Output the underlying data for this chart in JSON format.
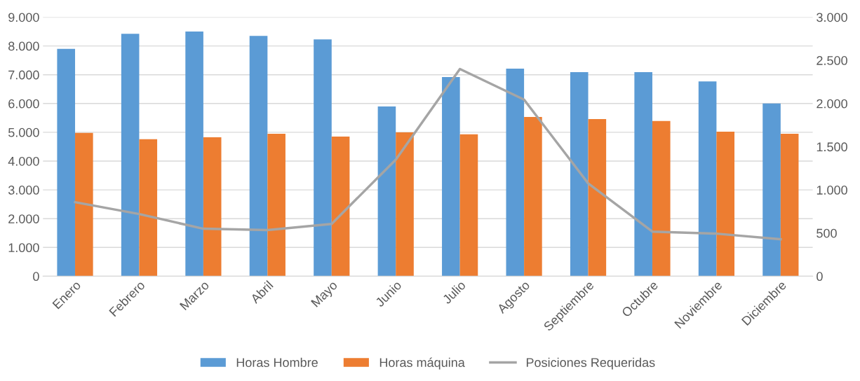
{
  "chart_data": {
    "type": "bar",
    "categories": [
      "Enero",
      "Febrero",
      "Marzo",
      "Abril",
      "Mayo",
      "Junio",
      "Julio",
      "Agosto",
      "Septiembre",
      "Octubre",
      "Noviembre",
      "Diciembre"
    ],
    "series": [
      {
        "name": "Horas Hombre",
        "color": "#5b9bd5",
        "values": [
          7900,
          8420,
          8500,
          8350,
          8230,
          5900,
          6920,
          7210,
          7090,
          7090,
          6770,
          6000
        ]
      },
      {
        "name": "Horas máquina",
        "color": "#ed7d31",
        "values": [
          4980,
          4760,
          4830,
          4950,
          4850,
          5000,
          4930,
          5530,
          5460,
          5390,
          5020,
          4950
        ]
      },
      {
        "name": "Posiciones Requeridas",
        "color": "#a5a5a5",
        "type": "line",
        "axis": "y2",
        "values": [
          857,
          720,
          550,
          534,
          606,
          1350,
          2400,
          2045,
          1075,
          517,
          493,
          428
        ]
      }
    ],
    "ylim": [
      0,
      9000
    ],
    "yticks": [
      {
        "value": 0,
        "label": "0"
      },
      {
        "value": 1000,
        "label": "1.000"
      },
      {
        "value": 2000,
        "label": "2.000"
      },
      {
        "value": 3000,
        "label": "3.000"
      },
      {
        "value": 4000,
        "label": "4.000"
      },
      {
        "value": 5000,
        "label": "5.000"
      },
      {
        "value": 6000,
        "label": "6.000"
      },
      {
        "value": 7000,
        "label": "7.000"
      },
      {
        "value": 8000,
        "label": "8.000"
      },
      {
        "value": 9000,
        "label": "9.000"
      }
    ],
    "y2lim": [
      0,
      3000
    ],
    "y2ticks": [
      {
        "value": 0,
        "label": "0"
      },
      {
        "value": 500,
        "label": "500"
      },
      {
        "value": 1000,
        "label": "1.000"
      },
      {
        "value": 1500,
        "label": "1.500"
      },
      {
        "value": 2000,
        "label": "2.000"
      },
      {
        "value": 2500,
        "label": "2.500"
      },
      {
        "value": 3000,
        "label": "3.000"
      }
    ],
    "grid": "y",
    "legend": "bottom",
    "marker": "none",
    "line_style": "solid"
  }
}
